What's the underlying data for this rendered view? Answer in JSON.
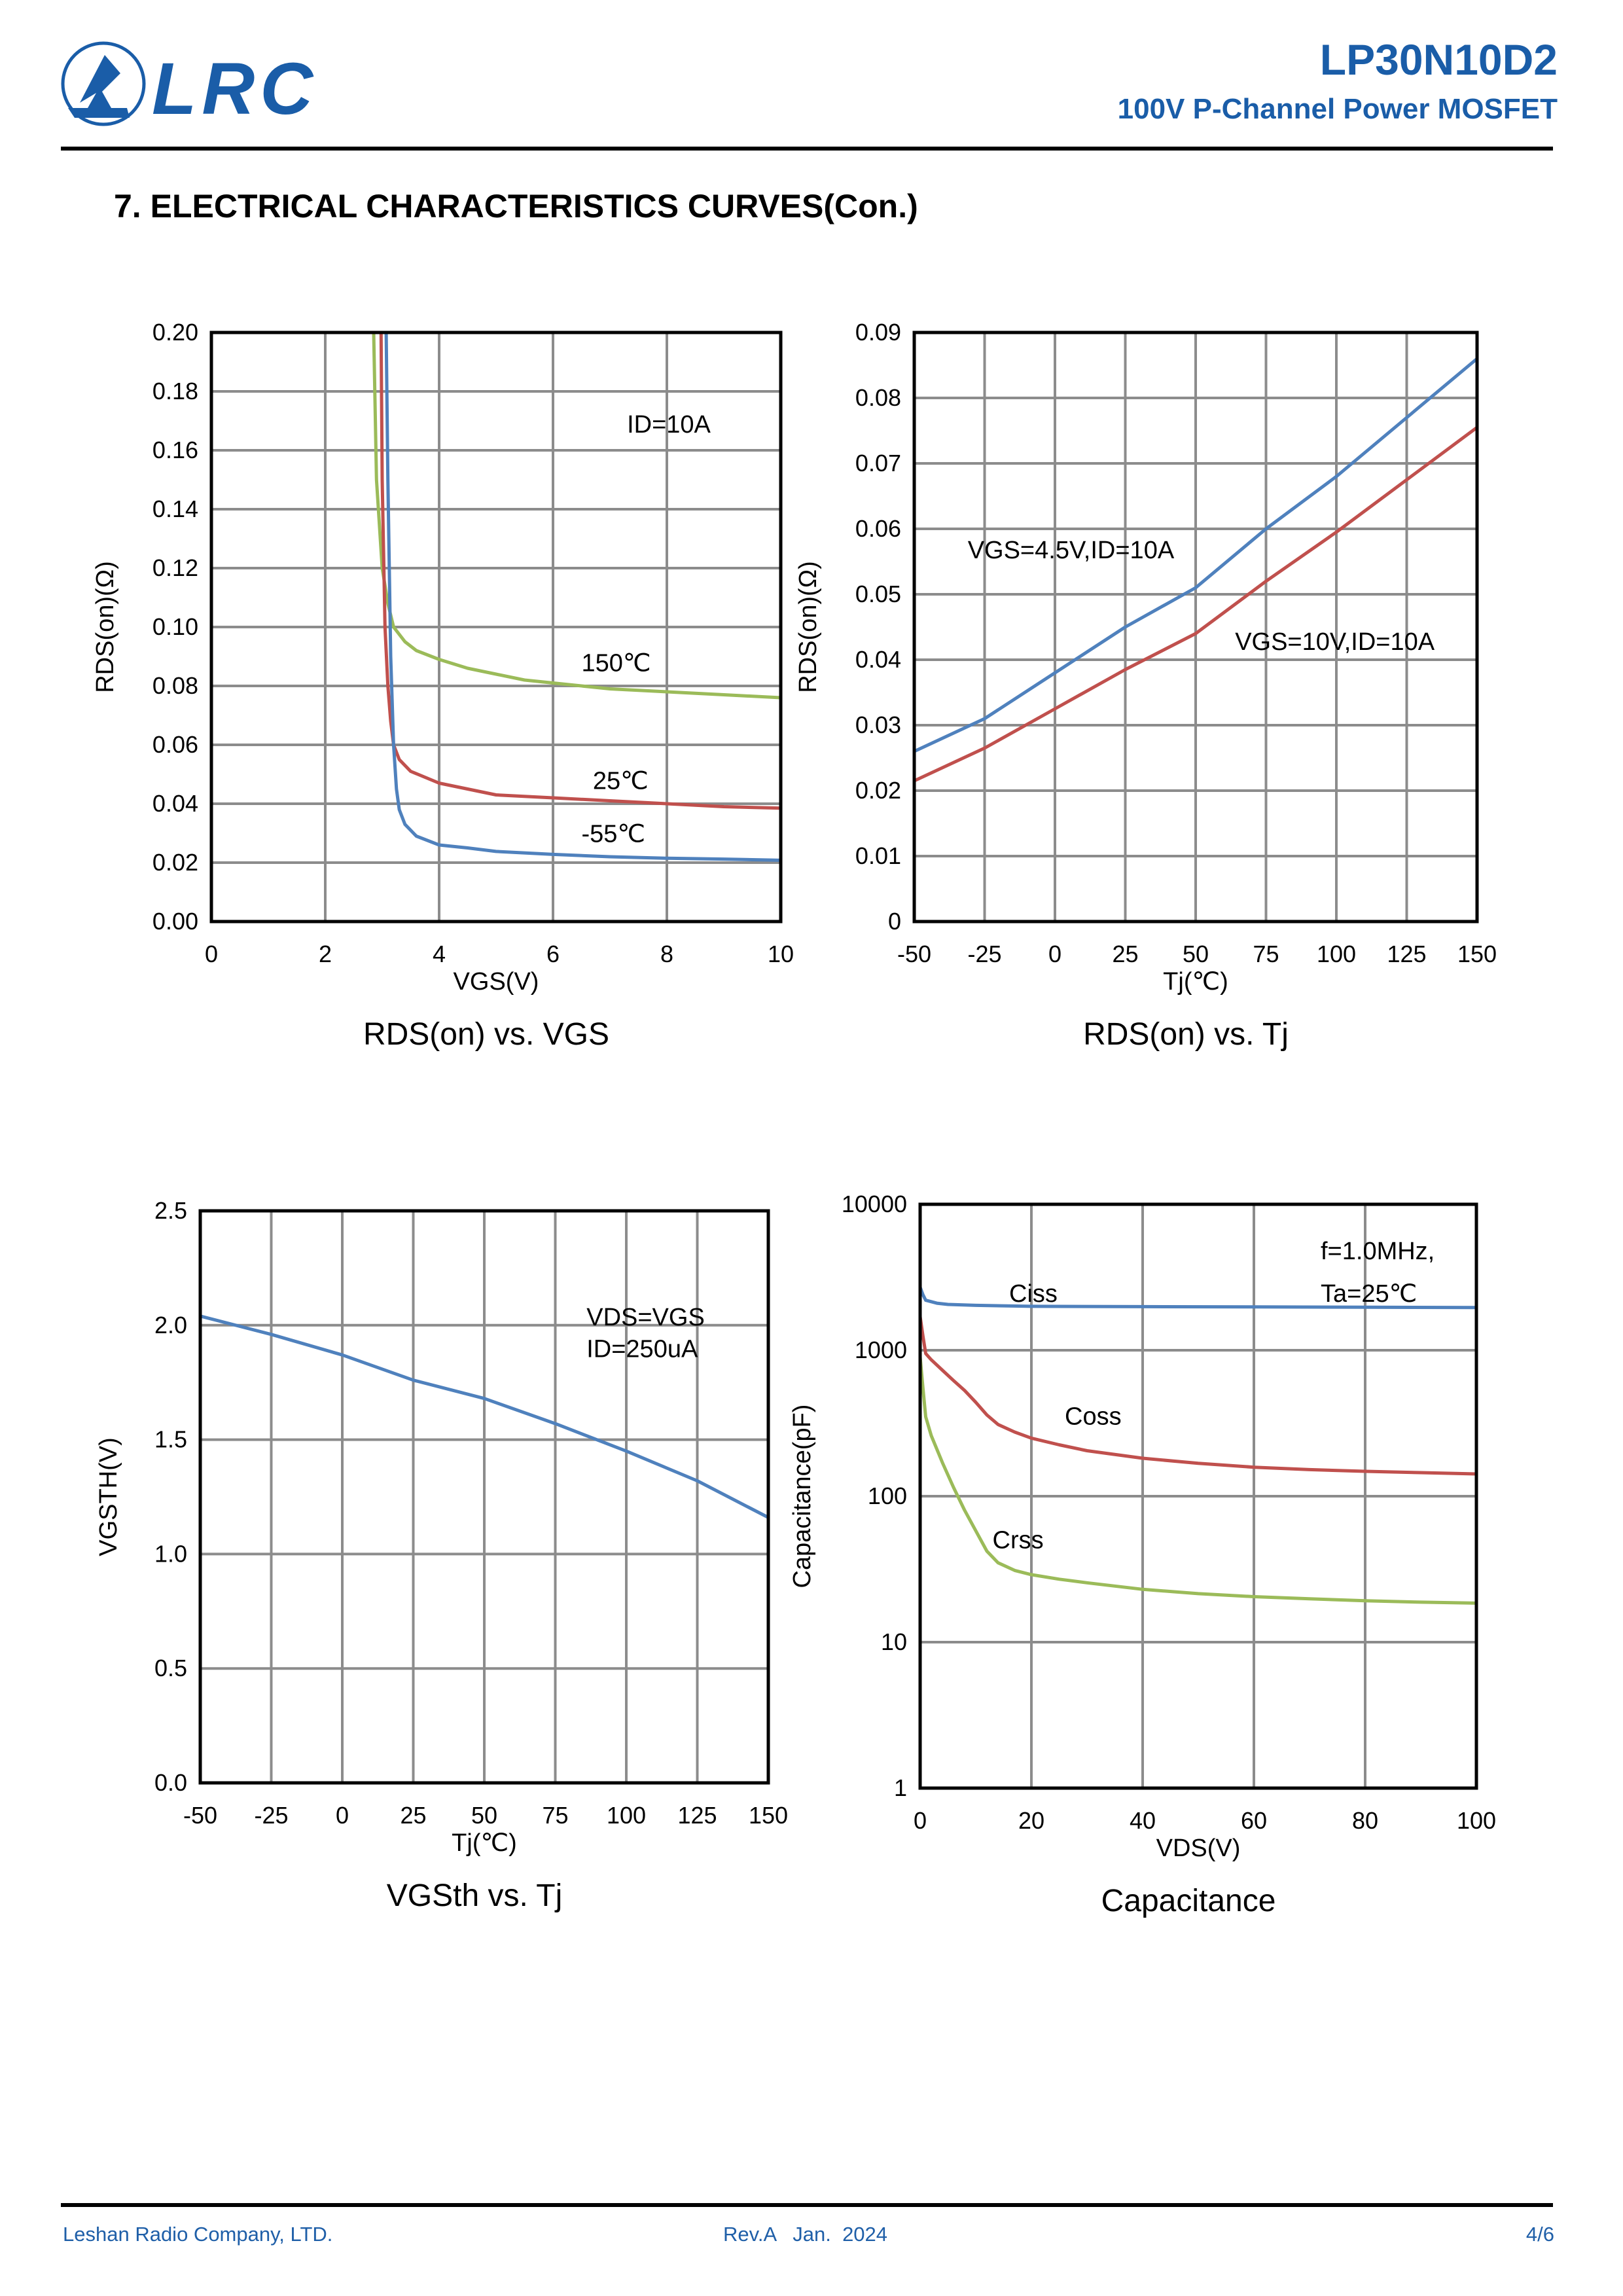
{
  "header": {
    "logo_text": "LRC",
    "part_number": "LP30N10D2",
    "part_description": "100V P-Channel Power MOSFET",
    "brand_color": "#1a5da8"
  },
  "section": {
    "heading": "7. ELECTRICAL CHARACTERISTICS CURVES(Con.)"
  },
  "footer": {
    "company": "Leshan Radio Company, LTD.",
    "revision": "Rev.A   Jan.  2024",
    "page": "4/6"
  },
  "chart_data": [
    {
      "id": "rds_vs_vgs",
      "type": "line",
      "title": "RDS(on) vs. VGS",
      "xlabel": "VGS(V)",
      "ylabel": "RDS(on)(Ω)",
      "xlim": [
        0,
        10
      ],
      "ylim": [
        0,
        0.2
      ],
      "xticks": [
        0,
        2,
        4,
        6,
        8,
        10
      ],
      "xtick_labels": [
        "0",
        "2",
        "4",
        "6",
        "8",
        "10"
      ],
      "yticks": [
        0,
        0.02,
        0.04,
        0.06,
        0.08,
        0.1,
        0.12,
        0.14,
        0.16,
        0.18,
        0.2
      ],
      "ytick_labels": [
        "0.00",
        "0.02",
        "0.04",
        "0.06",
        "0.08",
        "0.10",
        "0.12",
        "0.14",
        "0.16",
        "0.18",
        "0.20"
      ],
      "grid": true,
      "annotations": [
        {
          "text": "ID=10A",
          "x": 7.3,
          "y": 0.166
        },
        {
          "text": "150℃",
          "x": 6.5,
          "y": 0.085
        },
        {
          "text": "25℃",
          "x": 6.7,
          "y": 0.045
        },
        {
          "text": "-55℃",
          "x": 6.5,
          "y": 0.027
        }
      ],
      "series": [
        {
          "name": "150℃",
          "color": "#9bbb59",
          "x": [
            2.85,
            2.9,
            3.0,
            3.1,
            3.2,
            3.4,
            3.6,
            4.0,
            4.5,
            5.0,
            5.5,
            6.0,
            7.0,
            8.0,
            9.0,
            10.0
          ],
          "y": [
            0.2,
            0.15,
            0.12,
            0.108,
            0.1,
            0.095,
            0.092,
            0.089,
            0.086,
            0.084,
            0.082,
            0.081,
            0.079,
            0.078,
            0.077,
            0.076
          ]
        },
        {
          "name": "25℃",
          "color": "#c0504d",
          "x": [
            2.98,
            3.0,
            3.05,
            3.1,
            3.15,
            3.2,
            3.3,
            3.5,
            4.0,
            4.5,
            5.0,
            6.0,
            7.0,
            8.0,
            9.0,
            10.0
          ],
          "y": [
            0.2,
            0.15,
            0.1,
            0.08,
            0.068,
            0.06,
            0.055,
            0.051,
            0.047,
            0.045,
            0.043,
            0.042,
            0.041,
            0.04,
            0.039,
            0.0385
          ]
        },
        {
          "name": "-55℃",
          "color": "#4f81bd",
          "x": [
            3.07,
            3.1,
            3.15,
            3.2,
            3.25,
            3.3,
            3.4,
            3.6,
            4.0,
            4.5,
            5.0,
            6.0,
            7.0,
            8.0,
            9.0,
            10.0
          ],
          "y": [
            0.2,
            0.15,
            0.09,
            0.06,
            0.045,
            0.038,
            0.033,
            0.029,
            0.026,
            0.025,
            0.0238,
            0.0228,
            0.022,
            0.0215,
            0.0212,
            0.0208
          ]
        }
      ]
    },
    {
      "id": "rds_vs_tj",
      "type": "line",
      "title": "RDS(on) vs. Tj",
      "xlabel": "Tj(℃)",
      "ylabel": "RDS(on)(Ω)",
      "xlim": [
        -50,
        150
      ],
      "ylim": [
        0,
        0.09
      ],
      "xticks": [
        -50,
        -25,
        0,
        25,
        50,
        75,
        100,
        125,
        150
      ],
      "xtick_labels": [
        "-50",
        "-25",
        "0",
        "25",
        "50",
        "75",
        "100",
        "125",
        "150"
      ],
      "yticks": [
        0,
        0.01,
        0.02,
        0.03,
        0.04,
        0.05,
        0.06,
        0.07,
        0.08,
        0.09
      ],
      "ytick_labels": [
        "0",
        "0.01",
        "0.02",
        "0.03",
        "0.04",
        "0.05",
        "0.06",
        "0.07",
        "0.08",
        "0.09"
      ],
      "grid": true,
      "annotations": [
        {
          "text": "VGS=4.5V,ID=10A",
          "x": -31,
          "y": 0.0555
        },
        {
          "text": "VGS=10V,ID=10A",
          "x": 64,
          "y": 0.0415
        }
      ],
      "series": [
        {
          "name": "VGS=4.5V,ID=10A",
          "color": "#4f81bd",
          "x": [
            -50,
            -25,
            0,
            25,
            50,
            75,
            100,
            125,
            150
          ],
          "y": [
            0.026,
            0.031,
            0.038,
            0.045,
            0.051,
            0.06,
            0.068,
            0.077,
            0.086
          ]
        },
        {
          "name": "VGS=10V,ID=10A",
          "color": "#c0504d",
          "x": [
            -50,
            -25,
            0,
            25,
            50,
            75,
            100,
            125,
            150
          ],
          "y": [
            0.0215,
            0.0265,
            0.0325,
            0.0385,
            0.044,
            0.052,
            0.0595,
            0.0675,
            0.0755
          ]
        }
      ]
    },
    {
      "id": "vgsth_vs_tj",
      "type": "line",
      "title": "VGSth vs. Tj",
      "xlabel": "Tj(℃)",
      "ylabel": "VGSTH(V)",
      "xlim": [
        -50,
        150
      ],
      "ylim": [
        0,
        2.5
      ],
      "xticks": [
        -50,
        -25,
        0,
        25,
        50,
        75,
        100,
        125,
        150
      ],
      "xtick_labels": [
        "-50",
        "-25",
        "0",
        "25",
        "50",
        "75",
        "100",
        "125",
        "150"
      ],
      "yticks": [
        0,
        0.5,
        1.0,
        1.5,
        2.0,
        2.5
      ],
      "ytick_labels": [
        "0.0",
        "0.5",
        "1.0",
        "1.5",
        "2.0",
        "2.5"
      ],
      "grid": true,
      "annotations": [
        {
          "text": "VDS=VGS",
          "x": 86,
          "y": 2.0
        },
        {
          "text": "ID=250uA",
          "x": 86,
          "y": 1.86
        }
      ],
      "series": [
        {
          "name": "VGSth",
          "color": "#4f81bd",
          "x": [
            -50,
            -25,
            0,
            25,
            50,
            75,
            100,
            125,
            150
          ],
          "y": [
            2.04,
            1.96,
            1.87,
            1.76,
            1.68,
            1.57,
            1.45,
            1.32,
            1.16
          ]
        }
      ]
    },
    {
      "id": "capacitance",
      "type": "line",
      "title": "Capacitance",
      "xlabel": "VDS(V)",
      "ylabel": "Capacitance(pF)",
      "xlim": [
        0,
        100
      ],
      "ylim": [
        1,
        10000
      ],
      "yscale": "log",
      "xticks": [
        0,
        20,
        40,
        60,
        80,
        100
      ],
      "xtick_labels": [
        "0",
        "20",
        "40",
        "60",
        "80",
        "100"
      ],
      "yticks": [
        1,
        10,
        100,
        1000,
        10000
      ],
      "ytick_labels": [
        "1",
        "10",
        "100",
        "1000",
        "10000"
      ],
      "grid": true,
      "annotations": [
        {
          "text": "f=1.0MHz,",
          "x": 72,
          "y": 4200
        },
        {
          "text": "Ta=25℃",
          "x": 72,
          "y": 2150
        },
        {
          "text": "Ciss",
          "x": 16,
          "y": 2150
        },
        {
          "text": "Coss",
          "x": 26,
          "y": 310
        },
        {
          "text": "Crss",
          "x": 13,
          "y": 44
        }
      ],
      "series": [
        {
          "name": "Ciss",
          "color": "#4f81bd",
          "x": [
            0,
            0.5,
            1,
            3,
            5,
            10,
            20,
            40,
            60,
            80,
            100
          ],
          "y": [
            2700,
            2400,
            2200,
            2100,
            2060,
            2030,
            2000,
            1990,
            1980,
            1970,
            1960
          ]
        },
        {
          "name": "Coss",
          "color": "#c0504d",
          "x": [
            0,
            0.5,
            1,
            2,
            4,
            6,
            8,
            10,
            12,
            14,
            17,
            20,
            25,
            30,
            40,
            50,
            60,
            70,
            80,
            90,
            100
          ],
          "y": [
            1700,
            1250,
            950,
            860,
            730,
            620,
            530,
            440,
            360,
            310,
            275,
            250,
            225,
            205,
            182,
            168,
            158,
            152,
            148,
            145,
            142
          ]
        },
        {
          "name": "Crss",
          "color": "#9bbb59",
          "x": [
            0,
            0.5,
            1,
            2,
            4,
            6,
            8,
            10,
            12,
            14,
            17,
            20,
            25,
            30,
            40,
            50,
            60,
            70,
            80,
            90,
            100
          ],
          "y": [
            900,
            550,
            350,
            260,
            170,
            115,
            80,
            58,
            42,
            35,
            31,
            29,
            27,
            25.5,
            23,
            21.5,
            20.5,
            19.8,
            19.2,
            18.8,
            18.5
          ]
        }
      ]
    }
  ]
}
